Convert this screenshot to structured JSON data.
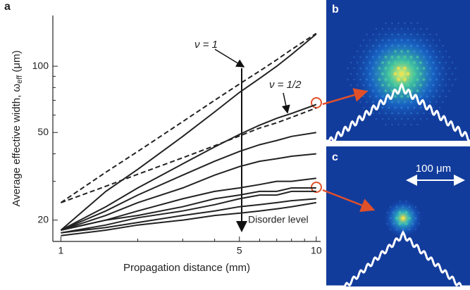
{
  "chart_data": {
    "type": "line",
    "panel_label": "a",
    "x_label": "Propagation distance (mm)",
    "y_label": {
      "main": "Average effective width, ω",
      "sub": "eff",
      "end": " (μm)"
    },
    "log_x": true,
    "log_y": true,
    "xlim": [
      0.93,
      10.4
    ],
    "ylim": [
      16,
      170
    ],
    "xticks": [
      1,
      5,
      10
    ],
    "xticks_minor": [
      2,
      3,
      4,
      6,
      7,
      8,
      9
    ],
    "yticks": [
      20,
      50,
      100
    ],
    "yticks_minor": [
      30,
      40,
      60,
      70,
      80,
      90
    ],
    "x": [
      1,
      1.5,
      2,
      3,
      4,
      5,
      6,
      7,
      8,
      10
    ],
    "series": [
      {
        "color": "#222222",
        "dashed": true,
        "values": [
          24,
          33,
          41,
          56,
          70,
          83,
          95,
          107,
          119,
          141
        ]
      },
      {
        "color": "#222222",
        "dashed": true,
        "values": [
          24,
          28.5,
          32.3,
          38.4,
          43.5,
          48.2,
          52.4,
          55.3,
          58.6,
          64.6
        ]
      },
      {
        "color": "#222222",
        "dashed": false,
        "values": [
          18,
          27,
          34,
          48,
          62,
          76,
          88,
          100,
          113,
          140
        ]
      },
      {
        "color": "#222222",
        "dashed": false,
        "values": [
          18,
          23,
          28,
          36,
          43,
          49,
          54,
          58,
          61,
          67
        ]
      },
      {
        "color": "#222222",
        "dashed": false,
        "values": [
          18,
          22,
          26,
          32,
          37,
          41,
          44,
          46,
          48,
          50
        ]
      },
      {
        "color": "#222222",
        "dashed": false,
        "values": [
          18,
          21,
          24,
          28,
          32,
          35,
          37,
          38,
          39,
          40
        ]
      },
      {
        "color": "#222222",
        "dashed": false,
        "values": [
          18,
          20,
          22,
          25,
          27,
          28,
          29,
          30,
          30,
          31
        ]
      },
      {
        "color": "#222222",
        "dashed": false,
        "values": [
          18,
          20,
          21,
          23,
          25,
          26,
          27,
          27,
          28,
          28
        ]
      },
      {
        "color": "#222222",
        "dashed": false,
        "values": [
          17.5,
          19,
          20.5,
          22,
          23.5,
          25,
          26,
          26,
          27,
          27
        ]
      },
      {
        "color": "#222222",
        "dashed": false,
        "values": [
          17.5,
          18.5,
          19.5,
          21,
          22,
          23,
          23.5,
          24,
          24.5,
          25
        ]
      },
      {
        "color": "#222222",
        "dashed": false,
        "values": [
          17,
          18,
          19,
          20,
          21,
          21.5,
          22,
          22.5,
          23,
          24
        ]
      }
    ],
    "annotations": [
      "ν = 1",
      "ν = 1/2",
      "Disorder level"
    ]
  },
  "panels": {
    "b": {
      "label": "b"
    },
    "c": {
      "label": "c",
      "scale_bar": "100 μm"
    }
  }
}
